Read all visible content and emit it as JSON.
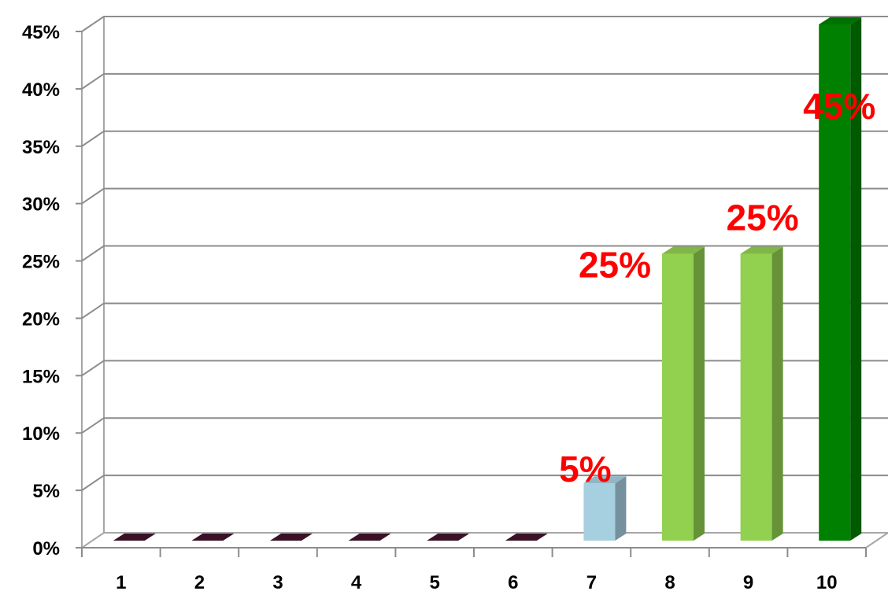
{
  "chart_data": {
    "type": "bar",
    "categories": [
      "1",
      "2",
      "3",
      "4",
      "5",
      "6",
      "7",
      "8",
      "9",
      "10"
    ],
    "values": [
      0,
      0,
      0,
      0,
      0,
      0,
      5,
      25,
      25,
      45
    ],
    "data_labels": [
      "",
      "",
      "",
      "",
      "",
      "",
      "5%",
      "25%",
      "25%",
      "45%"
    ],
    "bar_colors": [
      "#3a1126",
      "#3a1126",
      "#3a1126",
      "#3a1126",
      "#3a1126",
      "#3a1126",
      "#a6cfe0",
      "#92d050",
      "#92d050",
      "#008000"
    ],
    "yticks": [
      "0%",
      "5%",
      "10%",
      "15%",
      "20%",
      "25%",
      "30%",
      "35%",
      "40%",
      "45%"
    ],
    "ylim": [
      0,
      45
    ],
    "title": "",
    "xlabel": "",
    "ylabel": "",
    "grid": true,
    "legend": "none",
    "label_color": "#ff0000"
  }
}
